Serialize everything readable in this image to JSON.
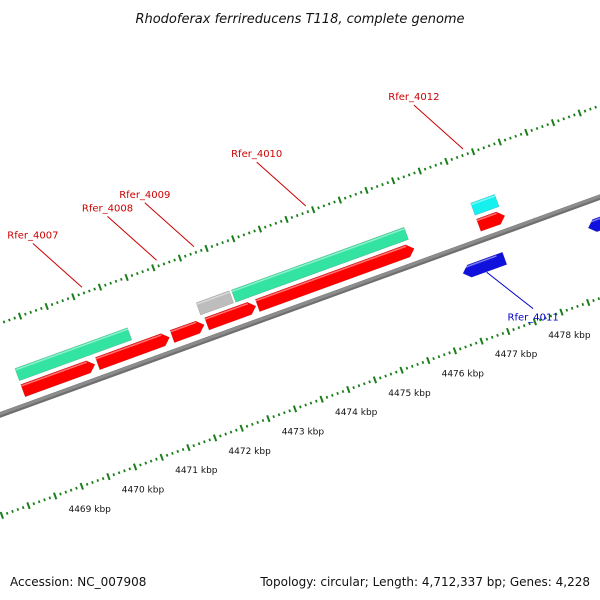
{
  "title": "Rhodoferax ferrireducens T118, complete genome",
  "footer": {
    "accession": "Accession: NC_007908",
    "summary": "Topology: circular; Length: 4,712,337 bp; Genes: 4,228"
  },
  "colors": {
    "tick_green": "#1a7f1a",
    "backbone": "#8c8c8c",
    "cds_red": "#ff0000",
    "gene_green": "#33e3a1",
    "gene_gray": "#bdbdbd",
    "gene_cyan": "#16f0ee",
    "reverse_blue": "#1111dd",
    "label_red": "#cc0000",
    "label_blue": "#0000cc"
  },
  "chart_data": {
    "type": "genome-map",
    "scale_unit": "kbp",
    "scale_ticks": [
      {
        "kbp": 4469,
        "label": "4469 kbp"
      },
      {
        "kbp": 4470,
        "label": "4470 kbp"
      },
      {
        "kbp": 4471,
        "label": "4471 kbp"
      },
      {
        "kbp": 4472,
        "label": "4472 kbp"
      },
      {
        "kbp": 4473,
        "label": "4473 kbp"
      },
      {
        "kbp": 4474,
        "label": "4474 kbp"
      },
      {
        "kbp": 4475,
        "label": "4475 kbp"
      },
      {
        "kbp": 4476,
        "label": "4476 kbp"
      },
      {
        "kbp": 4477,
        "label": "4477 kbp"
      },
      {
        "kbp": 4478,
        "label": "4478 kbp"
      }
    ],
    "features": [
      {
        "id": "f1",
        "label": "",
        "strand": "+",
        "track": "gene",
        "color": "gene_green",
        "start": 4468.6,
        "end": 4470.71
      },
      {
        "id": "f2",
        "label": "",
        "strand": "+",
        "track": "gene",
        "color": "gene_gray",
        "start": 4472.0,
        "end": 4472.62
      },
      {
        "id": "f3",
        "label": "",
        "strand": "+",
        "track": "gene",
        "color": "gene_green",
        "start": 4472.66,
        "end": 4475.9
      },
      {
        "id": "f4",
        "label": "",
        "strand": "+",
        "track": "gene",
        "color": "gene_cyan",
        "start": 4477.15,
        "end": 4477.6
      },
      {
        "id": "f5",
        "label": "",
        "strand": "+",
        "track": "cds",
        "color": "cds_red",
        "start": 4468.6,
        "end": 4469.95
      },
      {
        "id": "f6",
        "label": "",
        "strand": "+",
        "track": "cds",
        "color": "cds_red",
        "start": 4470.0,
        "end": 4471.35
      },
      {
        "id": "f7",
        "label": "",
        "strand": "+",
        "track": "cds",
        "color": "cds_red",
        "start": 4471.4,
        "end": 4472.0
      },
      {
        "id": "f8",
        "label": "",
        "strand": "+",
        "track": "cds",
        "color": "cds_red",
        "start": 4472.05,
        "end": 4472.97
      },
      {
        "id": "f9",
        "label": "",
        "strand": "+",
        "track": "cds",
        "color": "cds_red",
        "start": 4473.0,
        "end": 4475.94
      },
      {
        "id": "f10",
        "label": "",
        "strand": "+",
        "track": "cds",
        "color": "cds_red",
        "start": 4477.15,
        "end": 4477.64
      },
      {
        "id": "f11",
        "label": "",
        "strand": "-",
        "track": "rev",
        "color": "reverse_blue",
        "start": 4476.6,
        "end": 4477.38
      },
      {
        "id": "f12",
        "label": "",
        "strand": "-",
        "track": "rev",
        "color": "reverse_blue",
        "start": 4478.95,
        "end": 4479.5
      }
    ],
    "gene_labels": [
      {
        "name": "Rfer_4007",
        "color": "label_red",
        "target_kbp": 4470.2,
        "side": "above"
      },
      {
        "name": "Rfer_4008",
        "color": "label_red",
        "target_kbp": 4471.6,
        "side": "above"
      },
      {
        "name": "Rfer_4009",
        "color": "label_red",
        "target_kbp": 4472.3,
        "side": "above"
      },
      {
        "name": "Rfer_4010",
        "color": "label_red",
        "target_kbp": 4474.4,
        "side": "above"
      },
      {
        "name": "Rfer_4012",
        "color": "label_red",
        "target_kbp": 4477.35,
        "side": "above"
      },
      {
        "name": "Rfer_4011",
        "color": "label_blue",
        "target_kbp": 4477.0,
        "side": "below"
      }
    ]
  }
}
